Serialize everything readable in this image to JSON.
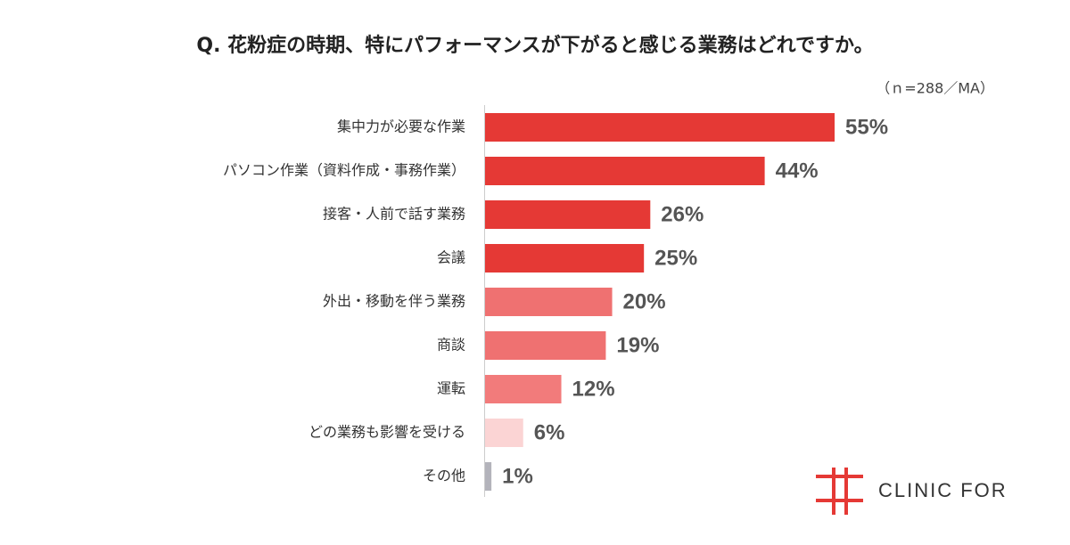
{
  "chart_data": {
    "type": "hbar",
    "title": "Q. 花粉症の時期、特にパフォーマンスが下がると感じる業務はどれですか。",
    "subtitle": "（ｎ=288／MA）",
    "categories": [
      "集中力が必要な作業",
      "パソコン作業（資料作成・事務作業）",
      "接客・人前で話す業務",
      "会議",
      "外出・移動を伴う業務",
      "商談",
      "運転",
      "どの業務も影響を受ける",
      "その他"
    ],
    "values": [
      55,
      44,
      26,
      25,
      20,
      19,
      12,
      6,
      1
    ],
    "value_labels": [
      "55%",
      "44%",
      "26%",
      "25%",
      "20%",
      "19%",
      "12%",
      "6%",
      "1%"
    ],
    "colors": [
      "#e53935",
      "#e53935",
      "#e53935",
      "#e53935",
      "#ef7171",
      "#ef7171",
      "#f27b7b",
      "#fbd4d4",
      "#b3b3bb"
    ],
    "logo": "CLINIC FOR"
  }
}
